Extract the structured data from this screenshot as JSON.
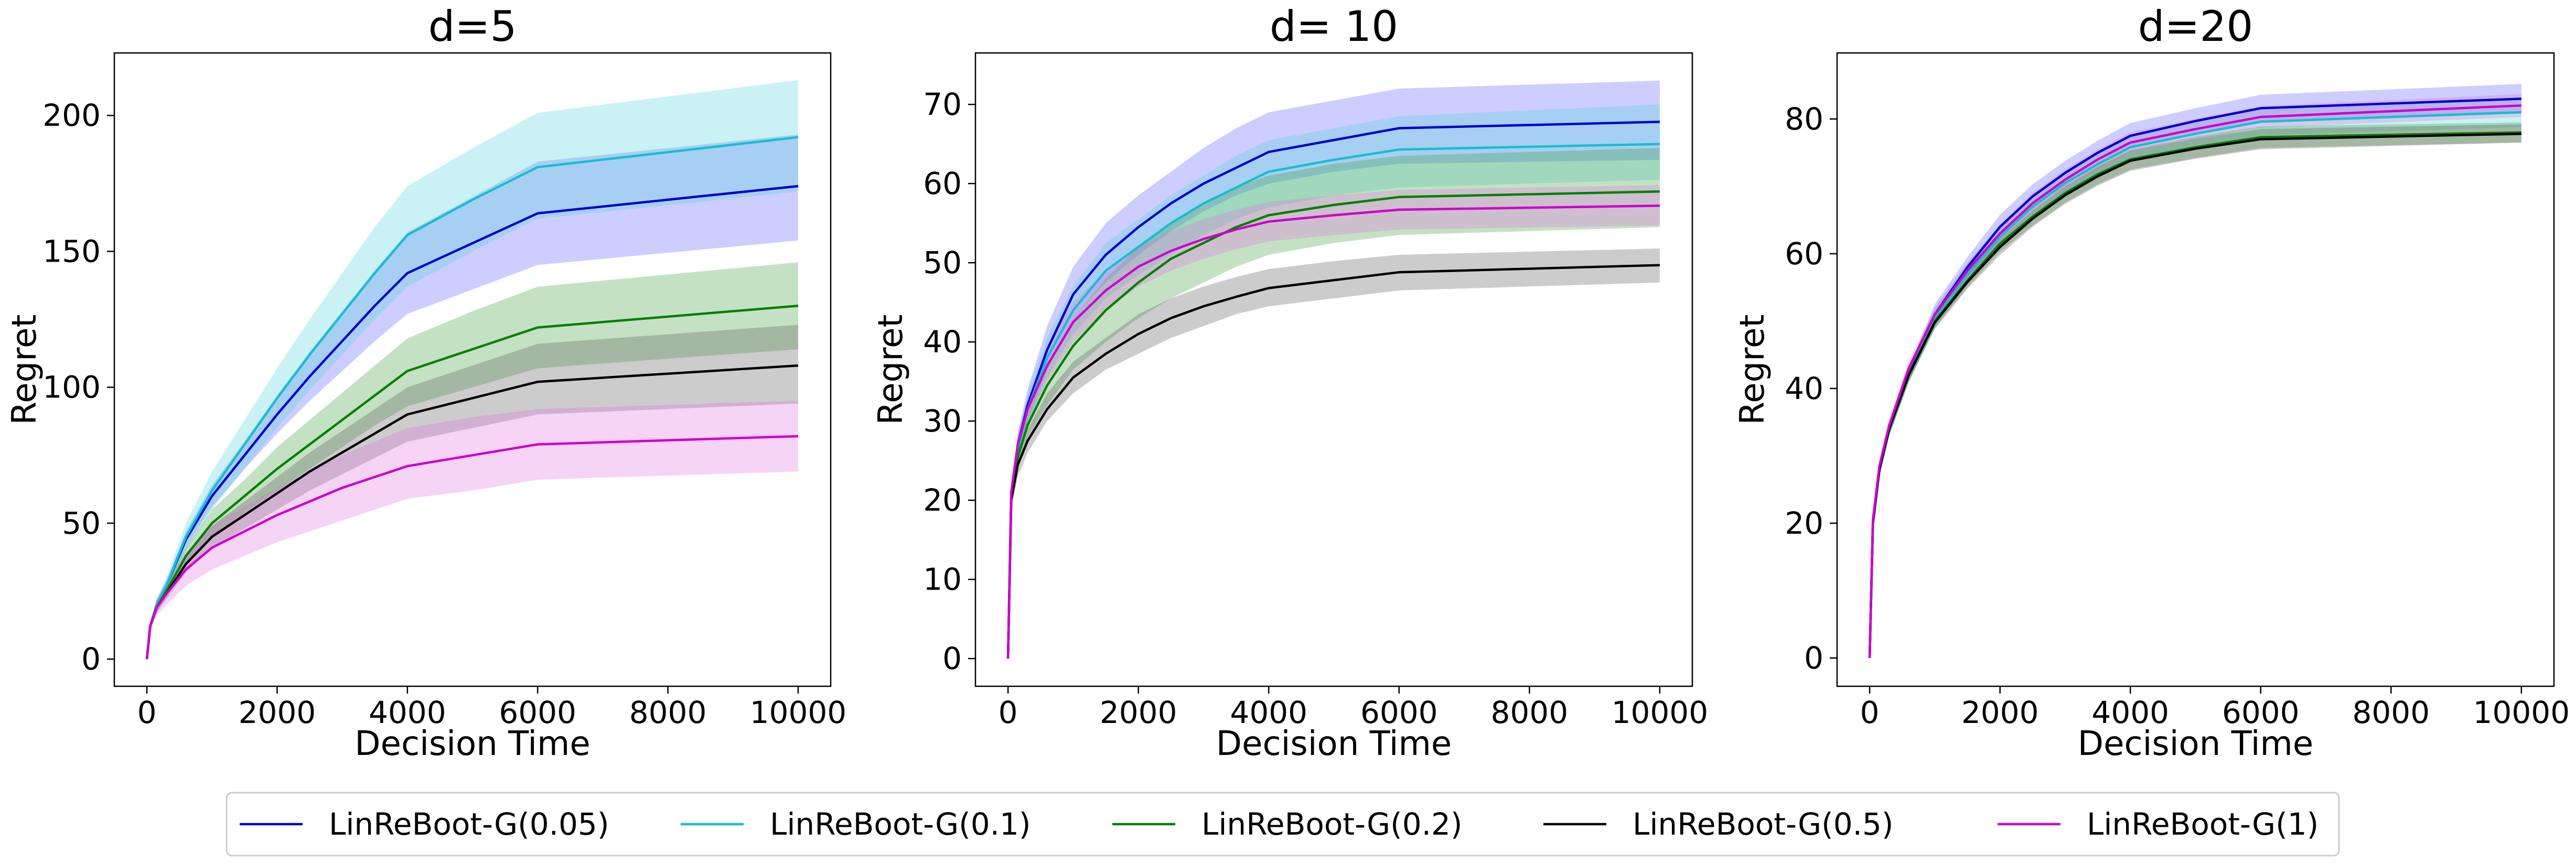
{
  "chart_data": [
    {
      "type": "line",
      "title": "d=5",
      "xlabel": "Decision Time",
      "ylabel": "Regret",
      "xlim": [
        -500,
        10500
      ],
      "ylim": [
        -10,
        223
      ],
      "xticks": [
        0,
        2000,
        4000,
        6000,
        8000,
        10000
      ],
      "yticks": [
        0,
        50,
        100,
        150,
        200
      ],
      "grid": false,
      "series": [
        {
          "name": "LinReBoot-G(0.05)",
          "color": "#0000cc",
          "band_color": "#5b5bff",
          "values": [
            0,
            12,
            20,
            27,
            44,
            60,
            75,
            90,
            104,
            117,
            130,
            142,
            153,
            164,
            174
          ],
          "lower": [
            0,
            11,
            18,
            25,
            41,
            56,
            70,
            83,
            95,
            106,
            117,
            127,
            136,
            145,
            154
          ],
          "upper": [
            0,
            13,
            22,
            29,
            47,
            64,
            80,
            97,
            113,
            128,
            143,
            157,
            170,
            183,
            193
          ]
        },
        {
          "name": "LinReBoot-G(0.1)",
          "color": "#17becf",
          "band_color": "#4fd3d9",
          "values": [
            0,
            12,
            20,
            27,
            45,
            62,
            79,
            96,
            112,
            127,
            142,
            156,
            169,
            181,
            192
          ],
          "lower": [
            0,
            11,
            18,
            24,
            40,
            55,
            70,
            85,
            99,
            112,
            125,
            137,
            150,
            162,
            172
          ],
          "upper": [
            0,
            13,
            22,
            30,
            50,
            69,
            88,
            107,
            125,
            142,
            159,
            174,
            188,
            201,
            213
          ]
        },
        {
          "name": "LinReBoot-G(0.2)",
          "color": "#008000",
          "band_color": "#3a9a3a",
          "values": [
            0,
            12,
            19,
            25,
            38,
            50,
            60,
            70,
            79,
            88,
            97,
            106,
            114,
            122,
            130
          ],
          "lower": [
            0,
            11,
            17,
            23,
            35,
            45,
            54,
            62,
            70,
            78,
            86,
            93,
            100,
            107,
            114
          ],
          "upper": [
            0,
            13,
            21,
            27,
            41,
            55,
            66,
            78,
            88,
            98,
            108,
            118,
            128,
            137,
            146
          ]
        },
        {
          "name": "LinReBoot-G(0.5)",
          "color": "#000000",
          "band_color": "#555555",
          "values": [
            0,
            12,
            19,
            24,
            35,
            45,
            53,
            61,
            69,
            76,
            83,
            90,
            96,
            102,
            108
          ],
          "lower": [
            0,
            11,
            17,
            22,
            32,
            41,
            48,
            55,
            62,
            68,
            74,
            80,
            85,
            90,
            94
          ],
          "upper": [
            0,
            13,
            21,
            26,
            38,
            49,
            58,
            67,
            76,
            84,
            92,
            100,
            108,
            116,
            123
          ]
        },
        {
          "name": "LinReBoot-G(1)",
          "color": "#cc00cc",
          "band_color": "#e070e0",
          "values": [
            0,
            12,
            19,
            24,
            33,
            41,
            47,
            53,
            58,
            63,
            67,
            71,
            75,
            79,
            82
          ],
          "lower": [
            0,
            10,
            16,
            20,
            27,
            33,
            38,
            43,
            47,
            51,
            55,
            59,
            62,
            66,
            69
          ],
          "upper": [
            0,
            14,
            22,
            28,
            39,
            49,
            56,
            63,
            69,
            75,
            80,
            85,
            89,
            92,
            95
          ]
        }
      ]
    },
    {
      "type": "line",
      "title": "d= 10",
      "xlabel": "Decision Time",
      "ylabel": "Regret",
      "xlim": [
        -500,
        10500
      ],
      "ylim": [
        -3.5,
        76.5
      ],
      "xticks": [
        0,
        2000,
        4000,
        6000,
        8000,
        10000
      ],
      "yticks": [
        0,
        10,
        20,
        30,
        40,
        50,
        60,
        70
      ],
      "grid": false,
      "series": [
        {
          "name": "LinReBoot-G(0.05)",
          "color": "#0000cc",
          "band_color": "#5b5bff",
          "values": [
            0,
            21,
            27,
            32,
            39,
            46,
            51,
            54.5,
            57.5,
            60,
            62,
            64,
            65.5,
            67,
            67.8
          ],
          "lower": [
            0,
            20,
            25.5,
            30,
            36.5,
            43,
            47.5,
            51,
            54,
            56.5,
            58.5,
            60,
            61.5,
            62.5,
            63
          ],
          "upper": [
            0,
            22,
            28.5,
            34,
            42,
            49.5,
            55,
            58.5,
            61.5,
            64.5,
            67,
            69,
            70.5,
            72,
            73
          ]
        },
        {
          "name": "LinReBoot-G(0.1)",
          "color": "#17becf",
          "band_color": "#4fd3d9",
          "values": [
            0,
            21,
            26.5,
            31.5,
            38,
            44,
            49,
            52,
            55,
            57.5,
            59.5,
            61.5,
            63,
            64.3,
            65
          ],
          "lower": [
            0,
            20,
            25,
            29.5,
            35.5,
            41,
            45.5,
            48.5,
            51,
            53.5,
            55.5,
            57,
            58.5,
            59.5,
            60.5
          ],
          "upper": [
            0,
            22,
            28,
            33.5,
            40.5,
            47,
            52.5,
            55.5,
            58.5,
            61,
            63.5,
            65.5,
            67,
            68.5,
            70
          ]
        },
        {
          "name": "LinReBoot-G(0.2)",
          "color": "#008000",
          "band_color": "#3a9a3a",
          "values": [
            0,
            20.5,
            25.5,
            29.5,
            34.5,
            39.5,
            44,
            47.5,
            50.5,
            52.5,
            54.5,
            56,
            57.3,
            58.3,
            59
          ],
          "lower": [
            0,
            19.5,
            24,
            28,
            32,
            36.5,
            40,
            43,
            45.5,
            47.5,
            49.5,
            51,
            52.5,
            53.5,
            54.5
          ],
          "upper": [
            0,
            21.5,
            27,
            31.5,
            37,
            43,
            48,
            52,
            55,
            57.5,
            59.5,
            61,
            62.5,
            63.5,
            64.5
          ]
        },
        {
          "name": "LinReBoot-G(0.5)",
          "color": "#000000",
          "band_color": "#555555",
          "values": [
            0,
            20,
            24.5,
            27.5,
            31.5,
            35.5,
            38.5,
            41,
            43,
            44.5,
            45.7,
            46.8,
            47.8,
            48.8,
            49.7
          ],
          "lower": [
            0,
            19,
            23,
            26,
            30,
            33.5,
            36.5,
            38.5,
            40.5,
            42,
            43.5,
            44.5,
            45.5,
            46.5,
            47.5
          ],
          "upper": [
            0,
            21,
            26,
            29,
            33.5,
            37.5,
            40.5,
            43.5,
            45.5,
            47,
            48.2,
            49.2,
            50.2,
            51,
            51.8
          ]
        },
        {
          "name": "LinReBoot-G(1)",
          "color": "#cc00cc",
          "band_color": "#e070e0",
          "values": [
            0,
            21,
            27,
            31.5,
            37,
            42.5,
            46.5,
            49.5,
            51.5,
            53,
            54.2,
            55.2,
            56,
            56.7,
            57.2
          ],
          "lower": [
            0,
            20,
            25.5,
            30,
            35,
            40,
            44,
            47,
            49,
            50.5,
            51.7,
            52.7,
            53.5,
            54.2,
            54.7
          ],
          "upper": [
            0,
            22,
            28.5,
            33,
            39.5,
            45,
            49,
            52,
            54,
            55.5,
            56.7,
            57.7,
            58.5,
            59.2,
            59.8
          ]
        }
      ]
    },
    {
      "type": "line",
      "title": "d=20",
      "xlabel": "Decision Time",
      "ylabel": "Regret",
      "xlim": [
        -500,
        10500
      ],
      "ylim": [
        -4.2,
        89.8
      ],
      "xticks": [
        0,
        2000,
        4000,
        6000,
        8000,
        10000
      ],
      "yticks": [
        0,
        20,
        40,
        60,
        80
      ],
      "grid": false,
      "series": [
        {
          "name": "LinReBoot-G(0.05)",
          "color": "#0000cc",
          "band_color": "#5b5bff",
          "values": [
            0,
            20,
            28,
            34,
            42,
            51,
            58,
            64,
            68.5,
            72,
            75,
            77.5,
            79.7,
            81.6,
            83
          ],
          "lower": [
            0,
            19,
            27,
            33,
            41,
            49.5,
            56.5,
            62.2,
            66.7,
            70.2,
            73.2,
            75.7,
            77.9,
            79.7,
            81
          ],
          "upper": [
            0,
            21,
            29,
            35,
            43,
            52.5,
            59.5,
            65.8,
            70.3,
            73.8,
            76.8,
            79.4,
            81.6,
            83.6,
            85.2
          ]
        },
        {
          "name": "LinReBoot-G(0.1)",
          "color": "#17becf",
          "band_color": "#4fd3d9",
          "values": [
            0,
            20,
            28,
            34,
            42,
            50.5,
            57,
            62.5,
            67,
            70.5,
            73.3,
            75.8,
            77.8,
            79.6,
            81
          ],
          "lower": [
            0,
            19,
            27,
            33,
            41,
            49,
            55.5,
            61,
            65.3,
            68.7,
            71.5,
            73.9,
            75.9,
            77.6,
            78.8
          ],
          "upper": [
            0,
            21,
            29,
            35,
            43,
            52,
            58.5,
            64,
            68.7,
            72.3,
            75.1,
            77.7,
            79.7,
            81.6,
            83
          ]
        },
        {
          "name": "LinReBoot-G(0.2)",
          "color": "#008000",
          "band_color": "#3a9a3a",
          "values": [
            0,
            20,
            28,
            34,
            42,
            50,
            56,
            61.5,
            65.5,
            69,
            71.8,
            74,
            75.8,
            77.3,
            78
          ],
          "lower": [
            0,
            19,
            27,
            33,
            41,
            49,
            55,
            60.3,
            64.2,
            67.6,
            70.3,
            72.5,
            74.2,
            75.7,
            76.5
          ],
          "upper": [
            0,
            21,
            29,
            35,
            43,
            51,
            57,
            62.7,
            66.8,
            70.4,
            73.3,
            75.5,
            77.4,
            78.9,
            79.5
          ]
        },
        {
          "name": "LinReBoot-G(0.5)",
          "color": "#000000",
          "band_color": "#555555",
          "values": [
            0,
            20,
            28,
            34,
            42,
            49.8,
            55.8,
            61,
            65.2,
            68.7,
            71.5,
            73.8,
            75.6,
            77,
            77.8
          ],
          "lower": [
            0,
            19,
            27,
            33,
            41,
            48.8,
            54.8,
            59.8,
            64,
            67.4,
            70.1,
            72.3,
            74.1,
            75.5,
            76.5
          ],
          "upper": [
            0,
            21,
            29,
            35,
            43,
            50.8,
            56.8,
            62.2,
            66.4,
            70,
            72.9,
            75.3,
            77.1,
            78.5,
            79.2
          ]
        },
        {
          "name": "LinReBoot-G(1)",
          "color": "#cc00cc",
          "band_color": "#e070e0",
          "values": [
            0,
            20.5,
            28.5,
            34.5,
            43,
            51,
            57.5,
            63,
            67.5,
            71,
            74,
            76.5,
            78.5,
            80.3,
            82
          ],
          "lower": [
            0,
            19.5,
            27.5,
            33.5,
            42,
            50,
            56.3,
            61.7,
            66,
            69.5,
            72.5,
            75,
            77,
            78.7,
            80.3
          ],
          "upper": [
            0,
            21.5,
            29.5,
            35.5,
            44,
            52,
            58.7,
            64.3,
            69,
            72.5,
            75.5,
            78,
            80,
            81.9,
            83.7
          ]
        }
      ]
    }
  ],
  "x_points": [
    0,
    50,
    150,
    300,
    600,
    1000,
    1500,
    2000,
    2500,
    3000,
    3500,
    4000,
    5000,
    6000,
    10000
  ],
  "legend": {
    "placement": "bottom-center",
    "items": [
      {
        "label": "LinReBoot-G(0.05)",
        "color": "#0000cc"
      },
      {
        "label": "LinReBoot-G(0.1)",
        "color": "#17becf"
      },
      {
        "label": "LinReBoot-G(0.2)",
        "color": "#008000"
      },
      {
        "label": "LinReBoot-G(0.5)",
        "color": "#000000"
      },
      {
        "label": "LinReBoot-G(1)",
        "color": "#cc00cc"
      }
    ]
  }
}
